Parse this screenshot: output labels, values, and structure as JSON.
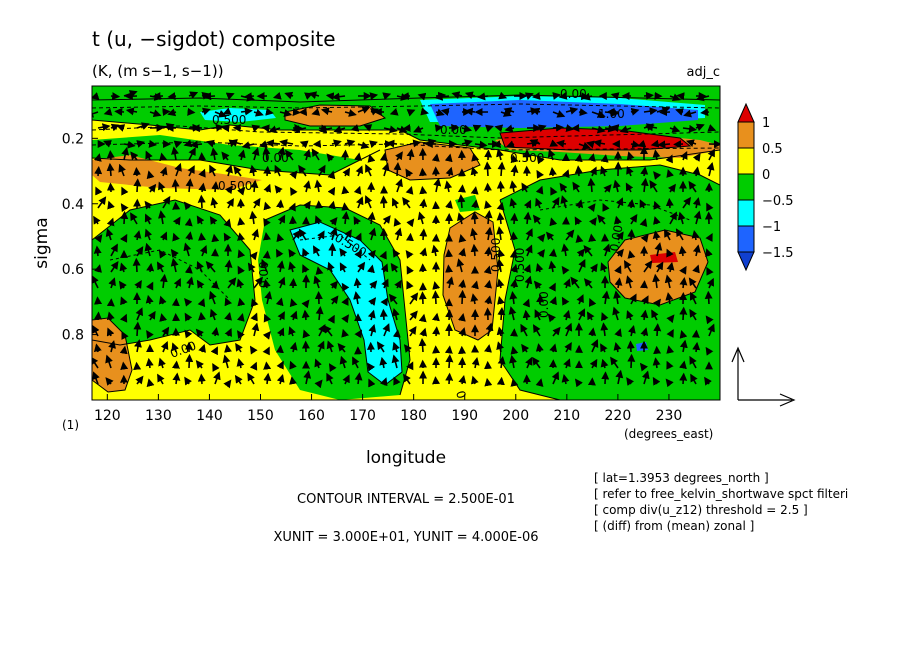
{
  "chart_data": {
    "type": "contour",
    "title": "t (u, −sigdot) composite",
    "subtitle": "(K, (m s−1, s−1))",
    "tag": "adj_c",
    "xlabel": "longitude",
    "ylabel": "sigma",
    "x_unit_label": "(degrees_east)",
    "index_label": "(1)",
    "xlim": [
      117,
      240
    ],
    "ylim": [
      1.0,
      0.04
    ],
    "x_ticks": [
      "120",
      "130",
      "140",
      "150",
      "160",
      "170",
      "180",
      "190",
      "200",
      "210",
      "220",
      "230"
    ],
    "y_ticks": [
      "0.2",
      "0.4",
      "0.6",
      "0.8"
    ],
    "colorbar": {
      "levels": [
        -1.5,
        -1,
        -0.5,
        0,
        0.5,
        1
      ],
      "labels": [
        "1",
        "0.5",
        "0",
        "−0.5",
        "−1",
        "−1.5"
      ],
      "colors": [
        "#dd0000",
        "#e8901d",
        "#ffff00",
        "#00cc00",
        "#00ffff",
        "#1e64ff",
        "#1040d0"
      ]
    },
    "contour_labels": [
      "0.00",
      "1.00",
      "0.500",
      "0.00",
      "0.500",
      "0.00",
      "0.500",
      "−0.500",
      "0.00",
      "0.500",
      "0.500",
      "0.00",
      "0.00",
      "0.00",
      "0.00"
    ],
    "contour_interval": "CONTOUR INTERVAL = 2.500E-01",
    "vector_units": "XUNIT = 3.000E+01, YUNIT = 4.000E-06",
    "info": [
      "[ lat=1.3953 degrees_north ]",
      "[ refer to free_kelvin_shortwave spct filteri",
      "[ comp div(u_z12) threshold = 2.5 ]",
      "[ (diff) from (mean) zonal ]"
    ]
  }
}
